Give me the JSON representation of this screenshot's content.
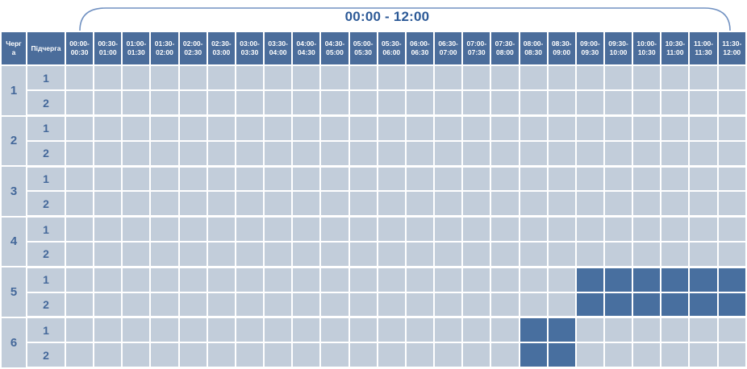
{
  "title": "00:00 - 12:00",
  "colors": {
    "header_bg": "#4b6d9b",
    "active_cell": "#486f9f",
    "cell_bg": "#c2cdda",
    "grid": "#ffffff",
    "number_text": "#44689a",
    "title_text": "#2d5a97",
    "brace": "#7292c2",
    "header_text": "#ffffff"
  },
  "chart_data": {
    "type": "table",
    "title": "00:00 - 12:00",
    "columns": {
      "queue_label_lines": [
        "Черг",
        "а"
      ],
      "queue_label": "Черга",
      "subqueue_label": "Підчерга",
      "time_slots": [
        "00:00-00:30",
        "00:30-01:00",
        "01:00-01:30",
        "01:30-02:00",
        "02:00-02:30",
        "02:30-03:00",
        "03:00-03:30",
        "03:30-04:00",
        "04:00-04:30",
        "04:30-05:00",
        "05:00-05:30",
        "05:30-06:00",
        "06:00-06:30",
        "06:30-07:00",
        "07:00-07:30",
        "07:30-08:00",
        "08:00-08:30",
        "08:30-09:00",
        "09:00-09:30",
        "09:30-10:00",
        "10:00-10:30",
        "10:30-11:00",
        "11:00-11:30",
        "11:30-12:00"
      ]
    },
    "queues": [
      {
        "queue": "1",
        "subqueues": [
          {
            "label": "1",
            "filled_slots": [],
            "filled_range": ""
          },
          {
            "label": "2",
            "filled_slots": [],
            "filled_range": ""
          }
        ]
      },
      {
        "queue": "2",
        "subqueues": [
          {
            "label": "1",
            "filled_slots": [],
            "filled_range": ""
          },
          {
            "label": "2",
            "filled_slots": [],
            "filled_range": ""
          }
        ]
      },
      {
        "queue": "3",
        "subqueues": [
          {
            "label": "1",
            "filled_slots": [],
            "filled_range": ""
          },
          {
            "label": "2",
            "filled_slots": [],
            "filled_range": ""
          }
        ]
      },
      {
        "queue": "4",
        "subqueues": [
          {
            "label": "1",
            "filled_slots": [],
            "filled_range": ""
          },
          {
            "label": "2",
            "filled_slots": [],
            "filled_range": ""
          }
        ]
      },
      {
        "queue": "5",
        "subqueues": [
          {
            "label": "1",
            "filled_slots": [
              18,
              19,
              20,
              21,
              22,
              23
            ],
            "filled_range": "09:00-12:00"
          },
          {
            "label": "2",
            "filled_slots": [
              18,
              19,
              20,
              21,
              22,
              23
            ],
            "filled_range": "09:00-12:00"
          }
        ]
      },
      {
        "queue": "6",
        "subqueues": [
          {
            "label": "1",
            "filled_slots": [
              16,
              17
            ],
            "filled_range": "08:00-09:00"
          },
          {
            "label": "2",
            "filled_slots": [
              16,
              17
            ],
            "filled_range": "08:00-09:00"
          }
        ]
      }
    ]
  }
}
